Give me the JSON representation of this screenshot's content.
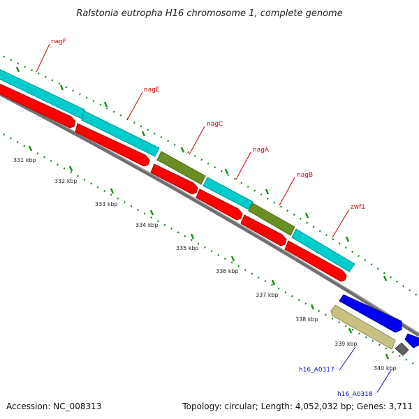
{
  "title": "Ralstonia eutropha H16 chromosome 1, complete genome",
  "footer": {
    "accession": "Accession: NC_008313",
    "summary": "Topology: circular; Length: 4,052,032 bp; Genes: 3,711"
  },
  "ticks": {
    "t331": "331 kbp",
    "t332": "332 kbp",
    "t333": "333 kbp",
    "t334": "334 kbp",
    "t335": "335 kbp",
    "t336": "336 kbp",
    "t337": "337 kbp",
    "t338": "338 kbp",
    "t339": "339 kbp",
    "t340": "340 kbp"
  },
  "genes": {
    "nagF": "nagF",
    "nagE": "nagE",
    "nagC": "nagC",
    "nagA": "nagA",
    "nagB": "nagB",
    "zwf1": "zwf1",
    "h16_A0317": "h16_A0317",
    "h16_A0318": "h16_A0318"
  },
  "colors": {
    "cds": "#00cccc",
    "gene": "#ff0000",
    "regulator": "#6b8e23",
    "other_strand": "#0000ee",
    "tan": "#c8c080",
    "backbone": "#808080",
    "tick": "#228b22",
    "label_red": "#cc0000",
    "label_blue": "#1010c0"
  }
}
